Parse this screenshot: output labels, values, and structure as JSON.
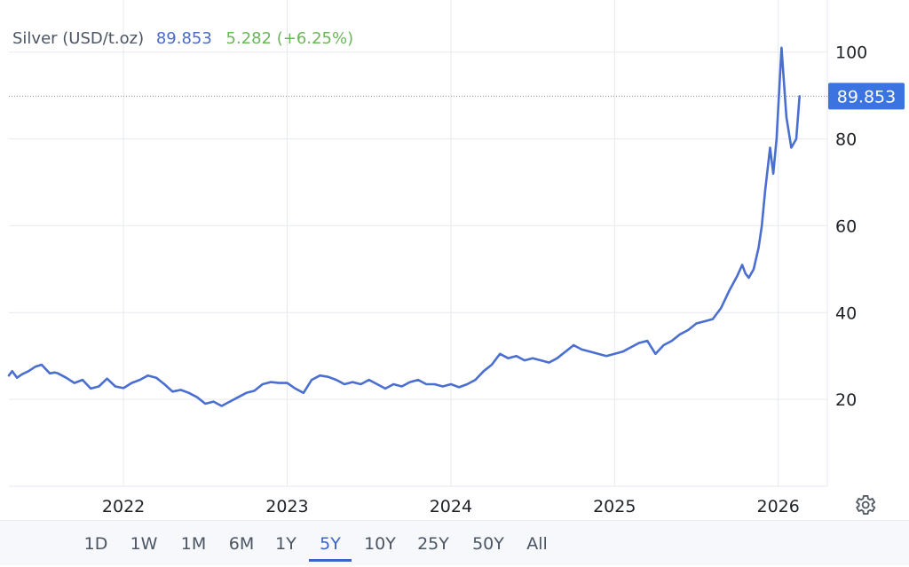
{
  "header": {
    "name": "Silver (USD/t.oz)",
    "price": "89.853",
    "change": "5.282 (+6.25%)"
  },
  "last_price_label": "89.853",
  "range_buttons": [
    "1D",
    "1W",
    "1M",
    "6M",
    "1Y",
    "5Y",
    "10Y",
    "25Y",
    "50Y",
    "All"
  ],
  "active_range": "5Y",
  "colors": {
    "line": "#4a6fd1",
    "price_text": "#4a6bc8",
    "change_text": "#6cb65a",
    "last_price_bg": "#3b73e0",
    "grid": "#e6e9ef",
    "active_range": "#3a64c9"
  },
  "icons": {
    "settings": "gear-icon"
  },
  "chart_data": {
    "type": "line",
    "title": "",
    "xlabel": "",
    "ylabel": "",
    "ylim": [
      0,
      112
    ],
    "xlim": [
      2021.3,
      2026.3
    ],
    "yticks": [
      20,
      40,
      60,
      80,
      100
    ],
    "xticks": [
      2022,
      2023,
      2024,
      2025,
      2026
    ],
    "grid": true,
    "last_value": 89.853,
    "series": [
      {
        "x": [
          2021.3,
          2021.32,
          2021.35,
          2021.38,
          2021.42,
          2021.46,
          2021.5,
          2021.55,
          2021.58,
          2021.6,
          2021.65,
          2021.7,
          2021.75,
          2021.8,
          2021.85,
          2021.9,
          2021.95,
          2022.0,
          2022.05,
          2022.1,
          2022.15,
          2022.2,
          2022.25,
          2022.3,
          2022.35,
          2022.4,
          2022.45,
          2022.5,
          2022.55,
          2022.6,
          2022.65,
          2022.7,
          2022.75,
          2022.8,
          2022.85,
          2022.9,
          2022.95,
          2023.0,
          2023.05,
          2023.1,
          2023.15,
          2023.2,
          2023.25,
          2023.3,
          2023.35,
          2023.4,
          2023.45,
          2023.5,
          2023.55,
          2023.6,
          2023.65,
          2023.7,
          2023.75,
          2023.8,
          2023.85,
          2023.9,
          2023.95,
          2024.0,
          2024.05,
          2024.1,
          2024.15,
          2024.2,
          2024.25,
          2024.3,
          2024.35,
          2024.4,
          2024.45,
          2024.5,
          2024.55,
          2024.6,
          2024.65,
          2024.7,
          2024.75,
          2024.8,
          2024.85,
          2024.9,
          2024.95,
          2025.0,
          2025.05,
          2025.1,
          2025.15,
          2025.2,
          2025.25,
          2025.3,
          2025.35,
          2025.4,
          2025.45,
          2025.5,
          2025.55,
          2025.6,
          2025.65,
          2025.7,
          2025.75,
          2025.78,
          2025.8,
          2025.82,
          2025.85,
          2025.88,
          2025.9,
          2025.92,
          2025.95,
          2025.97,
          2025.99,
          2026.02,
          2026.05,
          2026.08,
          2026.11,
          2026.13
        ],
        "y": [
          25.5,
          26.5,
          25.0,
          25.8,
          26.5,
          27.5,
          28.0,
          26.0,
          26.2,
          26.0,
          25.0,
          23.8,
          24.5,
          22.5,
          23.0,
          24.8,
          23.0,
          22.6,
          23.8,
          24.5,
          25.5,
          25.0,
          23.5,
          21.8,
          22.2,
          21.5,
          20.5,
          19.0,
          19.5,
          18.5,
          19.5,
          20.5,
          21.5,
          22.0,
          23.5,
          24.0,
          23.8,
          23.8,
          22.5,
          21.5,
          24.5,
          25.5,
          25.2,
          24.5,
          23.5,
          24.0,
          23.5,
          24.5,
          23.5,
          22.5,
          23.5,
          23.0,
          24.0,
          24.5,
          23.5,
          23.5,
          23.0,
          23.5,
          22.8,
          23.5,
          24.5,
          26.5,
          28.0,
          30.5,
          29.5,
          30.0,
          29.0,
          29.5,
          29.0,
          28.5,
          29.5,
          31.0,
          32.5,
          31.5,
          31.0,
          30.5,
          30.0,
          30.5,
          31.0,
          32.0,
          33.0,
          33.5,
          30.5,
          32.5,
          33.5,
          35.0,
          36.0,
          37.5,
          38.0,
          38.5,
          41.0,
          45.0,
          48.5,
          51.0,
          49.0,
          48.0,
          50.0,
          55.0,
          60.0,
          68.0,
          78.0,
          72.0,
          80.0,
          101.0,
          85.0,
          78.0,
          80.0,
          89.853
        ]
      }
    ]
  }
}
